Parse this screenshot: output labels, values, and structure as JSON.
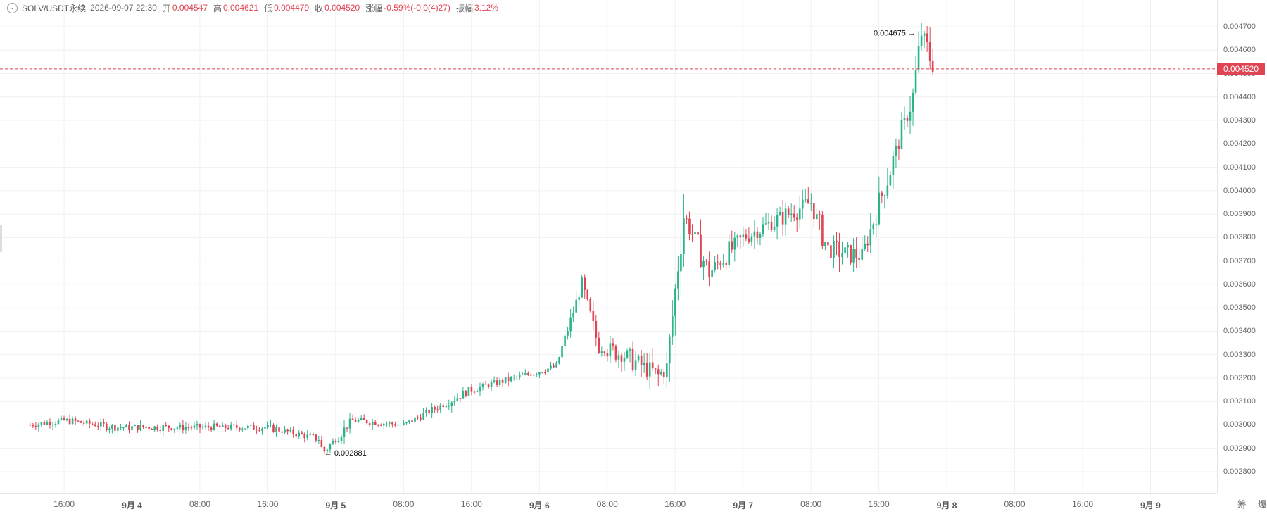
{
  "legend": {
    "symbol": "SOLV/USDT永续",
    "time": "2026-09-07 22:30",
    "open_label": "开",
    "open": "0.004547",
    "high_label": "高",
    "high": "0.004621",
    "low_label": "低",
    "low": "0.004479",
    "close_label": "收",
    "close": "0.004520",
    "change_label": "涨幅",
    "change": "-0.59%(-0.0(4)27)",
    "amplitude_label": "振幅",
    "amplitude": "3.12%"
  },
  "y_axis": {
    "ticks": [
      "0.004700",
      "0.004600",
      "0.004500",
      "0.004400",
      "0.004300",
      "0.004200",
      "0.004100",
      "0.004000",
      "0.003900",
      "0.003800",
      "0.003700",
      "0.003600",
      "0.003500",
      "0.003400",
      "0.003300",
      "0.003200",
      "0.003100",
      "0.003000",
      "0.002900",
      "0.002800"
    ]
  },
  "x_axis": {
    "ticks": [
      {
        "label": "16:00",
        "day": false
      },
      {
        "label": "9月 4",
        "day": true
      },
      {
        "label": "08:00",
        "day": false
      },
      {
        "label": "16:00",
        "day": false
      },
      {
        "label": "9月 5",
        "day": true
      },
      {
        "label": "08:00",
        "day": false
      },
      {
        "label": "16:00",
        "day": false
      },
      {
        "label": "9月 6",
        "day": true
      },
      {
        "label": "08:00",
        "day": false
      },
      {
        "label": "16:00",
        "day": false
      },
      {
        "label": "9月 7",
        "day": true
      },
      {
        "label": "08:00",
        "day": false
      },
      {
        "label": "16:00",
        "day": false
      },
      {
        "label": "9月 8",
        "day": true
      },
      {
        "label": "08:00",
        "day": false
      },
      {
        "label": "16:00",
        "day": false
      },
      {
        "label": "9月 9",
        "day": true
      }
    ]
  },
  "last_price": "0.004520",
  "high_marker": "0.004675",
  "low_marker": "0.002881",
  "side_tabs": [
    "筹",
    "爆"
  ],
  "colors": {
    "up": "#2bb48c",
    "down": "#e04352",
    "grid": "#f0f0f0",
    "dashed": "#e04352"
  },
  "icons": {
    "legend_toggle": "chevron-down-icon"
  },
  "chart_data": {
    "type": "candlestick",
    "ylim": [
      0.0028,
      0.00475
    ],
    "time_range": [
      "2026-09-03 12:00",
      "2026-09-09 00:00"
    ],
    "series_path": [
      [
        "9月 3 12:00",
        0.003
      ],
      [
        "9月 3 16:00",
        0.00302
      ],
      [
        "9月 3 22:00",
        0.00299
      ],
      [
        "9月 4 08:00",
        0.00299
      ],
      [
        "9月 4 16:00",
        0.00299
      ],
      [
        "9月 4 22:00",
        0.00294
      ],
      [
        "9月 4 22:30",
        0.002881
      ],
      [
        "9月 5 02:00",
        0.00302
      ],
      [
        "9月 5 08:00",
        0.003
      ],
      [
        "9月 5 16:00",
        0.00315
      ],
      [
        "9月 6 02:00",
        0.00325
      ],
      [
        "9月 6 05:00",
        0.0036
      ],
      [
        "9月 6 07:00",
        0.00333
      ],
      [
        "9月 6 10:00",
        0.0033
      ],
      [
        "9月 6 14:00",
        0.00321
      ],
      [
        "9月 6 15:00",
        0.00324
      ],
      [
        "9月 6 17:00",
        0.0039
      ],
      [
        "9月 6 20:00",
        0.00365
      ],
      [
        "9月 7 00:00",
        0.0038
      ],
      [
        "9月 7 08:00",
        0.00395
      ],
      [
        "9月 7 10:00",
        0.00375
      ],
      [
        "9月 7 14:00",
        0.00372
      ],
      [
        "9月 7 17:00",
        0.00405
      ],
      [
        "9月 7 20:00",
        0.0044
      ],
      [
        "9月 7 21:00",
        0.004675
      ],
      [
        "9月 7 22:30",
        0.00452
      ]
    ]
  }
}
